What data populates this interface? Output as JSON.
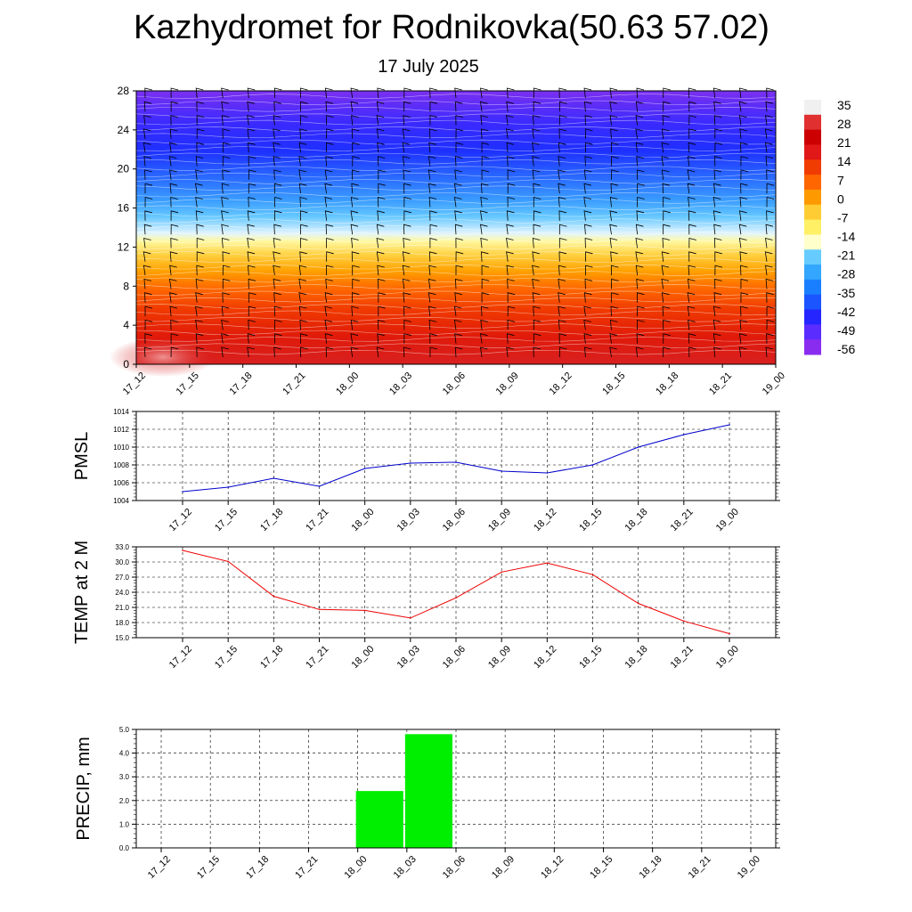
{
  "title": "Kazhydromet for Rodnikovka(50.63 57.02)",
  "subtitle": "17 July 2025",
  "time_labels": [
    "17_12",
    "17_15",
    "17_18",
    "17_21",
    "18_00",
    "18_03",
    "18_06",
    "18_09",
    "18_12",
    "18_15",
    "18_18",
    "18_21",
    "19_00"
  ],
  "chart_data": [
    {
      "type": "heatmap",
      "description_panel": "temperature-height",
      "x": [
        "17_12",
        "17_15",
        "17_18",
        "17_21",
        "18_00",
        "18_03",
        "18_06",
        "18_09",
        "18_12",
        "18_15",
        "18_18",
        "18_21",
        "19_00"
      ],
      "y_ticks": [
        "0",
        "4",
        "8",
        "12",
        "16",
        "20",
        "24",
        "28"
      ],
      "ylim": [
        0,
        28
      ],
      "colorbar_labels": [
        "35",
        "28",
        "21",
        "14",
        "7",
        "0",
        "-7",
        "-14",
        "-21",
        "-28",
        "-35",
        "-42",
        "-49",
        "-56"
      ],
      "colorbar_colors": [
        "#f0f0f0",
        "#e03030",
        "#cc0000",
        "#e01818",
        "#f03c00",
        "#ff6600",
        "#ff9900",
        "#ffcc33",
        "#fff066",
        "#ffffcc",
        "#66ccff",
        "#33a6ff",
        "#1a7fff",
        "#1a55ff",
        "#2525ff",
        "#5a2cff",
        "#8a2cf0"
      ],
      "wind_barbs": true
    },
    {
      "type": "line",
      "ylabel": "PMSL",
      "x": [
        "17_12",
        "17_15",
        "17_18",
        "17_21",
        "18_00",
        "18_03",
        "18_06",
        "18_09",
        "18_12",
        "18_15",
        "18_18",
        "18_21",
        "19_00"
      ],
      "values": [
        1005.0,
        1005.5,
        1006.5,
        1005.6,
        1007.6,
        1008.2,
        1008.3,
        1007.3,
        1007.1,
        1008.0,
        1010.0,
        1011.4,
        1012.5
      ],
      "y_ticks": [
        "1004",
        "1006",
        "1008",
        "1010",
        "1012",
        "1014"
      ],
      "ylim": [
        1004,
        1014
      ],
      "color": "#0000cc",
      "grid": true
    },
    {
      "type": "line",
      "ylabel": "TEMP at 2 M",
      "x": [
        "17_12",
        "17_15",
        "17_18",
        "17_21",
        "18_00",
        "18_03",
        "18_06",
        "18_09",
        "18_12",
        "18_15",
        "18_18",
        "18_21",
        "19_00"
      ],
      "values": [
        32.3,
        30.1,
        23.2,
        20.6,
        20.4,
        18.9,
        22.9,
        28.0,
        29.8,
        27.5,
        21.8,
        18.3,
        15.8
      ],
      "y_ticks": [
        "15.0",
        "18.0",
        "21.0",
        "24.0",
        "27.0",
        "30.0",
        "33.0"
      ],
      "ylim": [
        15,
        33
      ],
      "color": "#ee0000",
      "grid": true
    },
    {
      "type": "bar",
      "ylabel": "PRECIP, mm",
      "categories": [
        "17_12",
        "17_15",
        "17_18",
        "17_21",
        "18_00",
        "18_03",
        "18_06",
        "18_09",
        "18_12",
        "18_15",
        "18_18",
        "18_21",
        "19_00"
      ],
      "values": [
        0,
        0,
        0,
        0,
        2.4,
        4.8,
        0.02,
        0,
        0,
        0,
        0,
        0,
        0
      ],
      "y_ticks": [
        "0.0",
        "1.0",
        "2.0",
        "3.0",
        "4.0",
        "5.0"
      ],
      "ylim": [
        0,
        5
      ],
      "color": "#00ee00",
      "grid": true
    }
  ]
}
